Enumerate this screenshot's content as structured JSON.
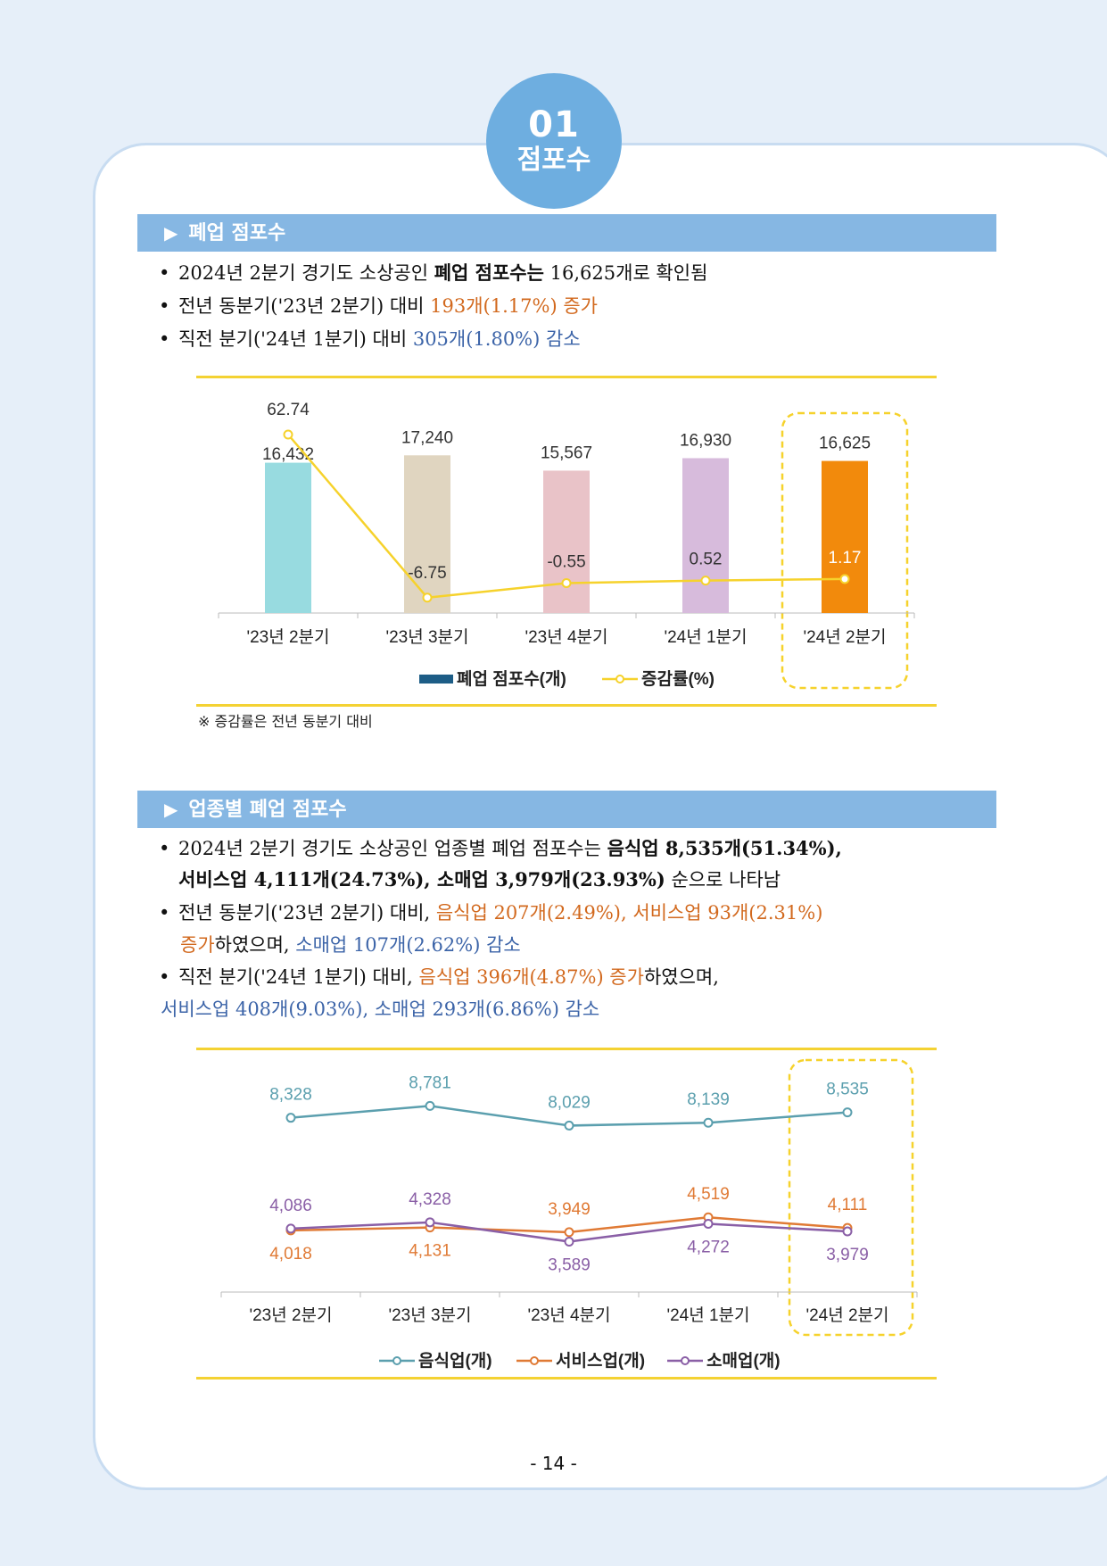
{
  "badge": {
    "number": "01",
    "title": "점포수"
  },
  "section1": {
    "heading": "폐업 점포수",
    "b1": {
      "pre": "2024년 2분기 경기도 소상공인 ",
      "bold": "폐업 점포수는",
      "mid": " 16,625개",
      "post": "로 확인됨"
    },
    "b2": {
      "pre": "전년 동분기('23년 2분기) 대비 ",
      "hl": "193개(1.17%) 증가"
    },
    "b3": {
      "pre": "직전 분기('24년 1분기) 대비 ",
      "hl": "305개(1.80%) 감소"
    },
    "note": "※ 증감률은 전년 동분기 대비"
  },
  "chart1": {
    "type": "bar",
    "categories": [
      "'23년 2분기",
      "'23년 3분기",
      "'23년 4분기",
      "'24년 1분기",
      "'24년 2분기"
    ],
    "series": [
      {
        "name": "폐업 점포수(개)",
        "values": [
          16432,
          17240,
          15567,
          16930,
          16625
        ],
        "labels": [
          "16,432",
          "17,240",
          "15,567",
          "16,930",
          "16,625"
        ]
      },
      {
        "name": "증감률(%)",
        "values": [
          62.74,
          -6.75,
          -0.55,
          0.52,
          1.17
        ],
        "labels": [
          "62.74",
          "-6.75",
          "-0.55",
          "0.52",
          "1.17"
        ]
      }
    ],
    "bar_colors": [
      "#98dbe0",
      "#e0d5c0",
      "#e9c3c8",
      "#d7bbdc",
      "#f28a0c"
    ],
    "line_color": "#f6d22c",
    "legend_color": "#1d5d86"
  },
  "section2": {
    "heading": "업종별 폐업 점포수",
    "b1": {
      "pre": "2024년 2분기 경기도 소상공인 업종별 폐업 점포수는 ",
      "bold": "음식업 8,535개(51.34%),",
      "line2bold": "서비스업 4,111개(24.73%), 소매업 3,979개(23.93%)",
      "post": " 순으로 나타남"
    },
    "b2": {
      "pre": "전년 동분기('23년 2분기) 대비, ",
      "hl1": "음식업 207개(2.49%), 서비스업 93개(2.31%)",
      "hl2": "증가",
      "mid": "하였으며, ",
      "hl3": "소매업 107개(2.62%) 감소"
    },
    "b3": {
      "pre": "직전 분기('24년 1분기) 대비, ",
      "hl1": "음식업 396개(4.87%) 증가",
      "post": "하였으며,",
      "hl2": "서비스업 408개(9.03%), 소매업 293개(6.86%) 감소"
    }
  },
  "chart2": {
    "type": "line",
    "categories": [
      "'23년 2분기",
      "'23년 3분기",
      "'23년 4분기",
      "'24년 1분기",
      "'24년 2분기"
    ],
    "series": [
      {
        "name": "음식업(개)",
        "values": [
          8328,
          8781,
          8029,
          8139,
          8535
        ],
        "labels": [
          "8,328",
          "8,781",
          "8,029",
          "8,139",
          "8,535"
        ],
        "color": "#5b9fae"
      },
      {
        "name": "서비스업(개)",
        "values": [
          4018,
          4131,
          3949,
          4519,
          4111
        ],
        "labels": [
          "4,018",
          "4,131",
          "3,949",
          "4,519",
          "4,111"
        ],
        "color": "#e07a35"
      },
      {
        "name": "소매업(개)",
        "values": [
          4086,
          4328,
          3589,
          4272,
          3979
        ],
        "labels": [
          "4,086",
          "4,328",
          "3,589",
          "4,272",
          "3,979"
        ],
        "color": "#8a5fa6"
      }
    ]
  },
  "page_number": "- 14 -"
}
